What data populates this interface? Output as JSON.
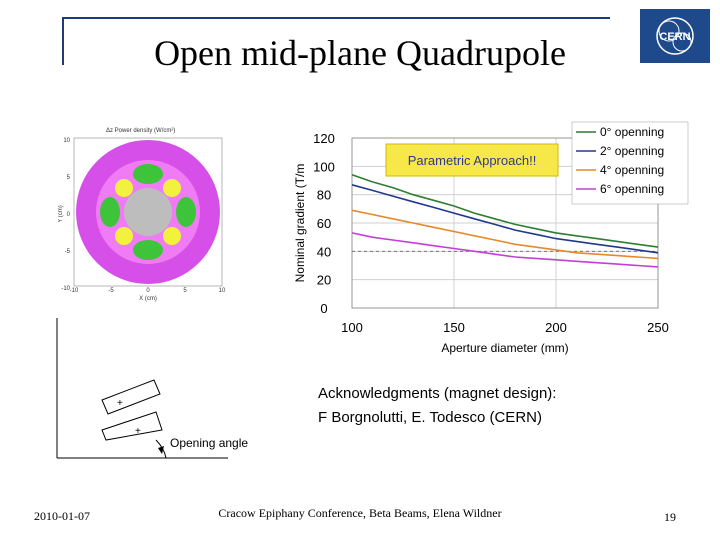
{
  "slide": {
    "title": "Open mid-plane Quadrupole",
    "footer_date": "2010-01-07",
    "footer_center": "Cracow Epiphany Conference, Beta Beams, Elena Wildner",
    "page_number": "19",
    "logo_text": "CERN",
    "acknowledgment_line1": "Acknowledgments (magnet design):",
    "acknowledgment_line2": "F Borgnolutti, E. Todesco (CERN)",
    "opening_angle_label": "Opening angle",
    "plus_sign": "+"
  },
  "density_plot": {
    "title": "Δz Power density (W/cm²)",
    "xlabel": "X (cm)",
    "ylabel": "Y (cm)",
    "xticks": [
      "-10",
      "-5",
      "0",
      "5",
      "10"
    ],
    "yticks": [
      "10",
      "5",
      "0",
      "-5",
      "-10"
    ],
    "colors": {
      "outer": "#d54fe8",
      "inner": "#f07cf5",
      "hot": "#3ec43a",
      "warm": "#f2f23e",
      "core": "#bdbdbd"
    }
  },
  "chart_data": {
    "type": "line",
    "title": "",
    "annotation": "Parametric Approach!!",
    "xlabel": "Aperture diameter (mm)",
    "ylabel": "Nominal gradient (T/m",
    "xlim": [
      100,
      250
    ],
    "ylim": [
      0,
      120
    ],
    "xticks": [
      100,
      150,
      200,
      250
    ],
    "yticks": [
      0,
      20,
      40,
      60,
      80,
      100,
      120
    ],
    "reference_line_y": 40,
    "series": [
      {
        "name": "0° openning",
        "color": "#2e7d32",
        "x": [
          100,
          110,
          120,
          130,
          140,
          150,
          160,
          170,
          180,
          190,
          200,
          210,
          220,
          230,
          240,
          250
        ],
        "y": [
          94,
          89,
          85,
          80,
          76,
          72,
          67,
          63,
          59,
          56,
          53,
          51,
          49,
          47,
          45,
          43
        ]
      },
      {
        "name": "2° openning",
        "color": "#1f3a8a",
        "x": [
          100,
          110,
          120,
          130,
          140,
          150,
          160,
          170,
          180,
          190,
          200,
          210,
          220,
          230,
          240,
          250
        ],
        "y": [
          87,
          83,
          79,
          75,
          71,
          67,
          63,
          59,
          55,
          52,
          49,
          47,
          45,
          43,
          41,
          39
        ]
      },
      {
        "name": "4° openning",
        "color": "#e8882a",
        "x": [
          100,
          110,
          120,
          130,
          140,
          150,
          160,
          170,
          180,
          190,
          200,
          210,
          220,
          230,
          240,
          250
        ],
        "y": [
          69,
          66,
          63,
          60,
          57,
          54,
          51,
          48,
          45,
          43,
          41,
          39,
          38,
          37,
          36,
          35
        ]
      },
      {
        "name": "6° openning",
        "color": "#c23fd6",
        "x": [
          100,
          110,
          120,
          130,
          140,
          150,
          160,
          170,
          180,
          190,
          200,
          210,
          220,
          230,
          240,
          250
        ],
        "y": [
          53,
          50,
          48,
          46,
          44,
          42,
          40,
          38,
          36,
          35,
          34,
          33,
          32,
          31,
          30,
          29
        ]
      }
    ],
    "legend_position": "top-right",
    "grid": true
  }
}
